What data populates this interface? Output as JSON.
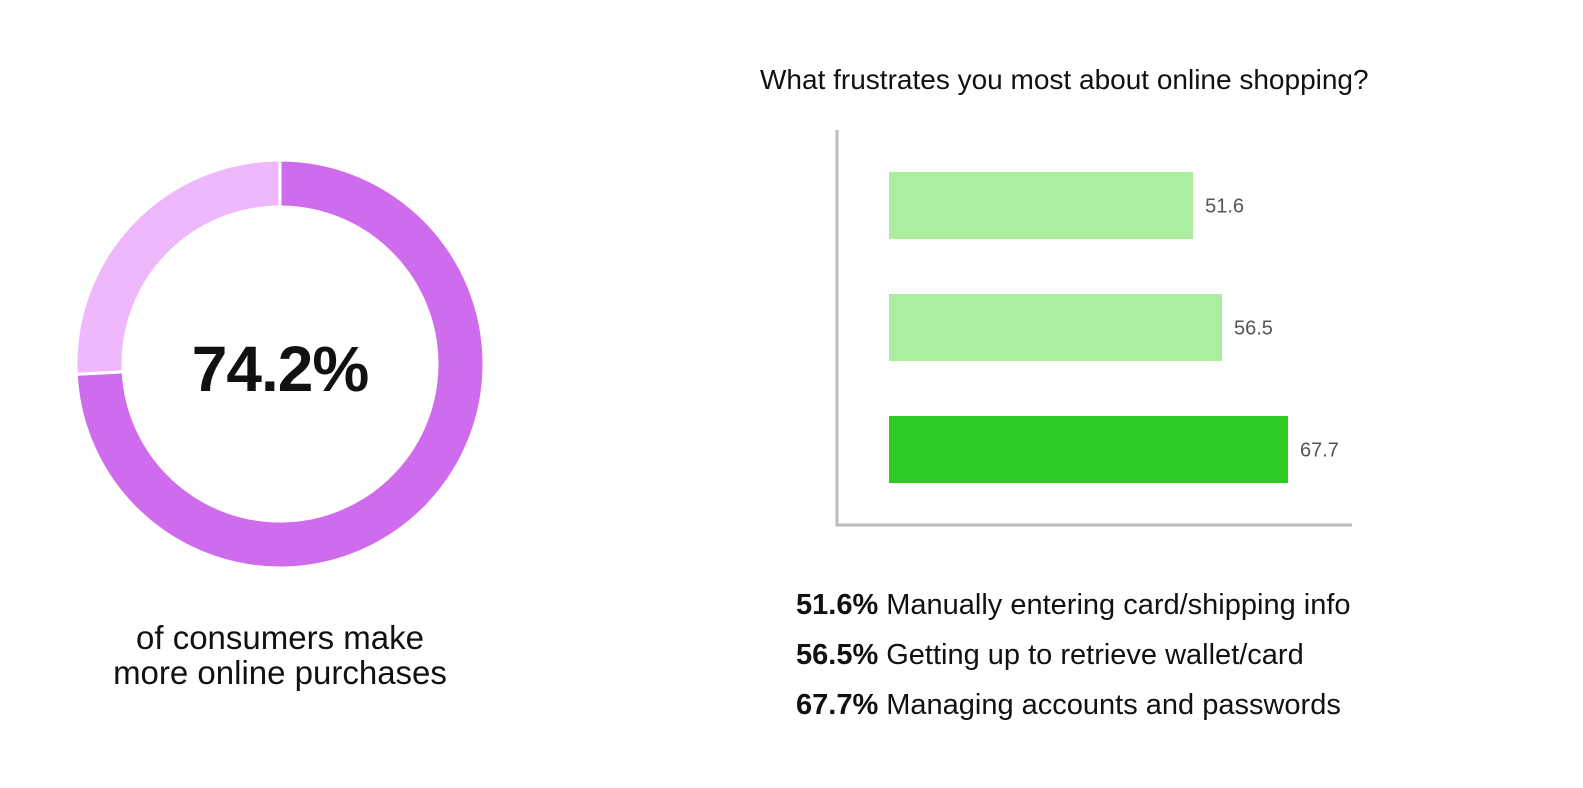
{
  "donut": {
    "value_label": "74.2%",
    "caption_lines": [
      "of consumers make",
      "more online purchases"
    ]
  },
  "bar": {
    "title": "What frustrates you most about online shopping?",
    "legend": [
      {
        "pct": "51.6%",
        "text": "Manually entering card/shipping info"
      },
      {
        "pct": "56.5%",
        "text": "Getting up to retrieve wallet/card"
      },
      {
        "pct": "67.7%",
        "text": "Managing accounts and passwords"
      }
    ]
  },
  "colors": {
    "donut_main": "#cf6cee",
    "donut_rest": "#efb8fc",
    "bar_light": "#abeea0",
    "bar_highlight": "#2ecb22",
    "axis": "#bbbbbb"
  },
  "chart_data": [
    {
      "type": "pie",
      "title": "",
      "categories": [
        "",
        ""
      ],
      "values": [
        74.2,
        25.8
      ],
      "center_label": "74.2%",
      "caption": "of consumers make more online purchases",
      "style": "donut"
    },
    {
      "type": "bar",
      "orientation": "horizontal",
      "title": "What frustrates you most about online shopping?",
      "categories": [
        "Manually entering card/shipping info",
        "Getting up to retrieve wallet/card",
        "Managing accounts and passwords"
      ],
      "values": [
        51.6,
        56.5,
        67.7
      ],
      "value_labels": [
        "51.6",
        "56.5",
        "67.7"
      ],
      "highlight_index": 2,
      "xlabel": "",
      "ylabel": "",
      "xlim": [
        0,
        86
      ],
      "grid": false
    }
  ]
}
